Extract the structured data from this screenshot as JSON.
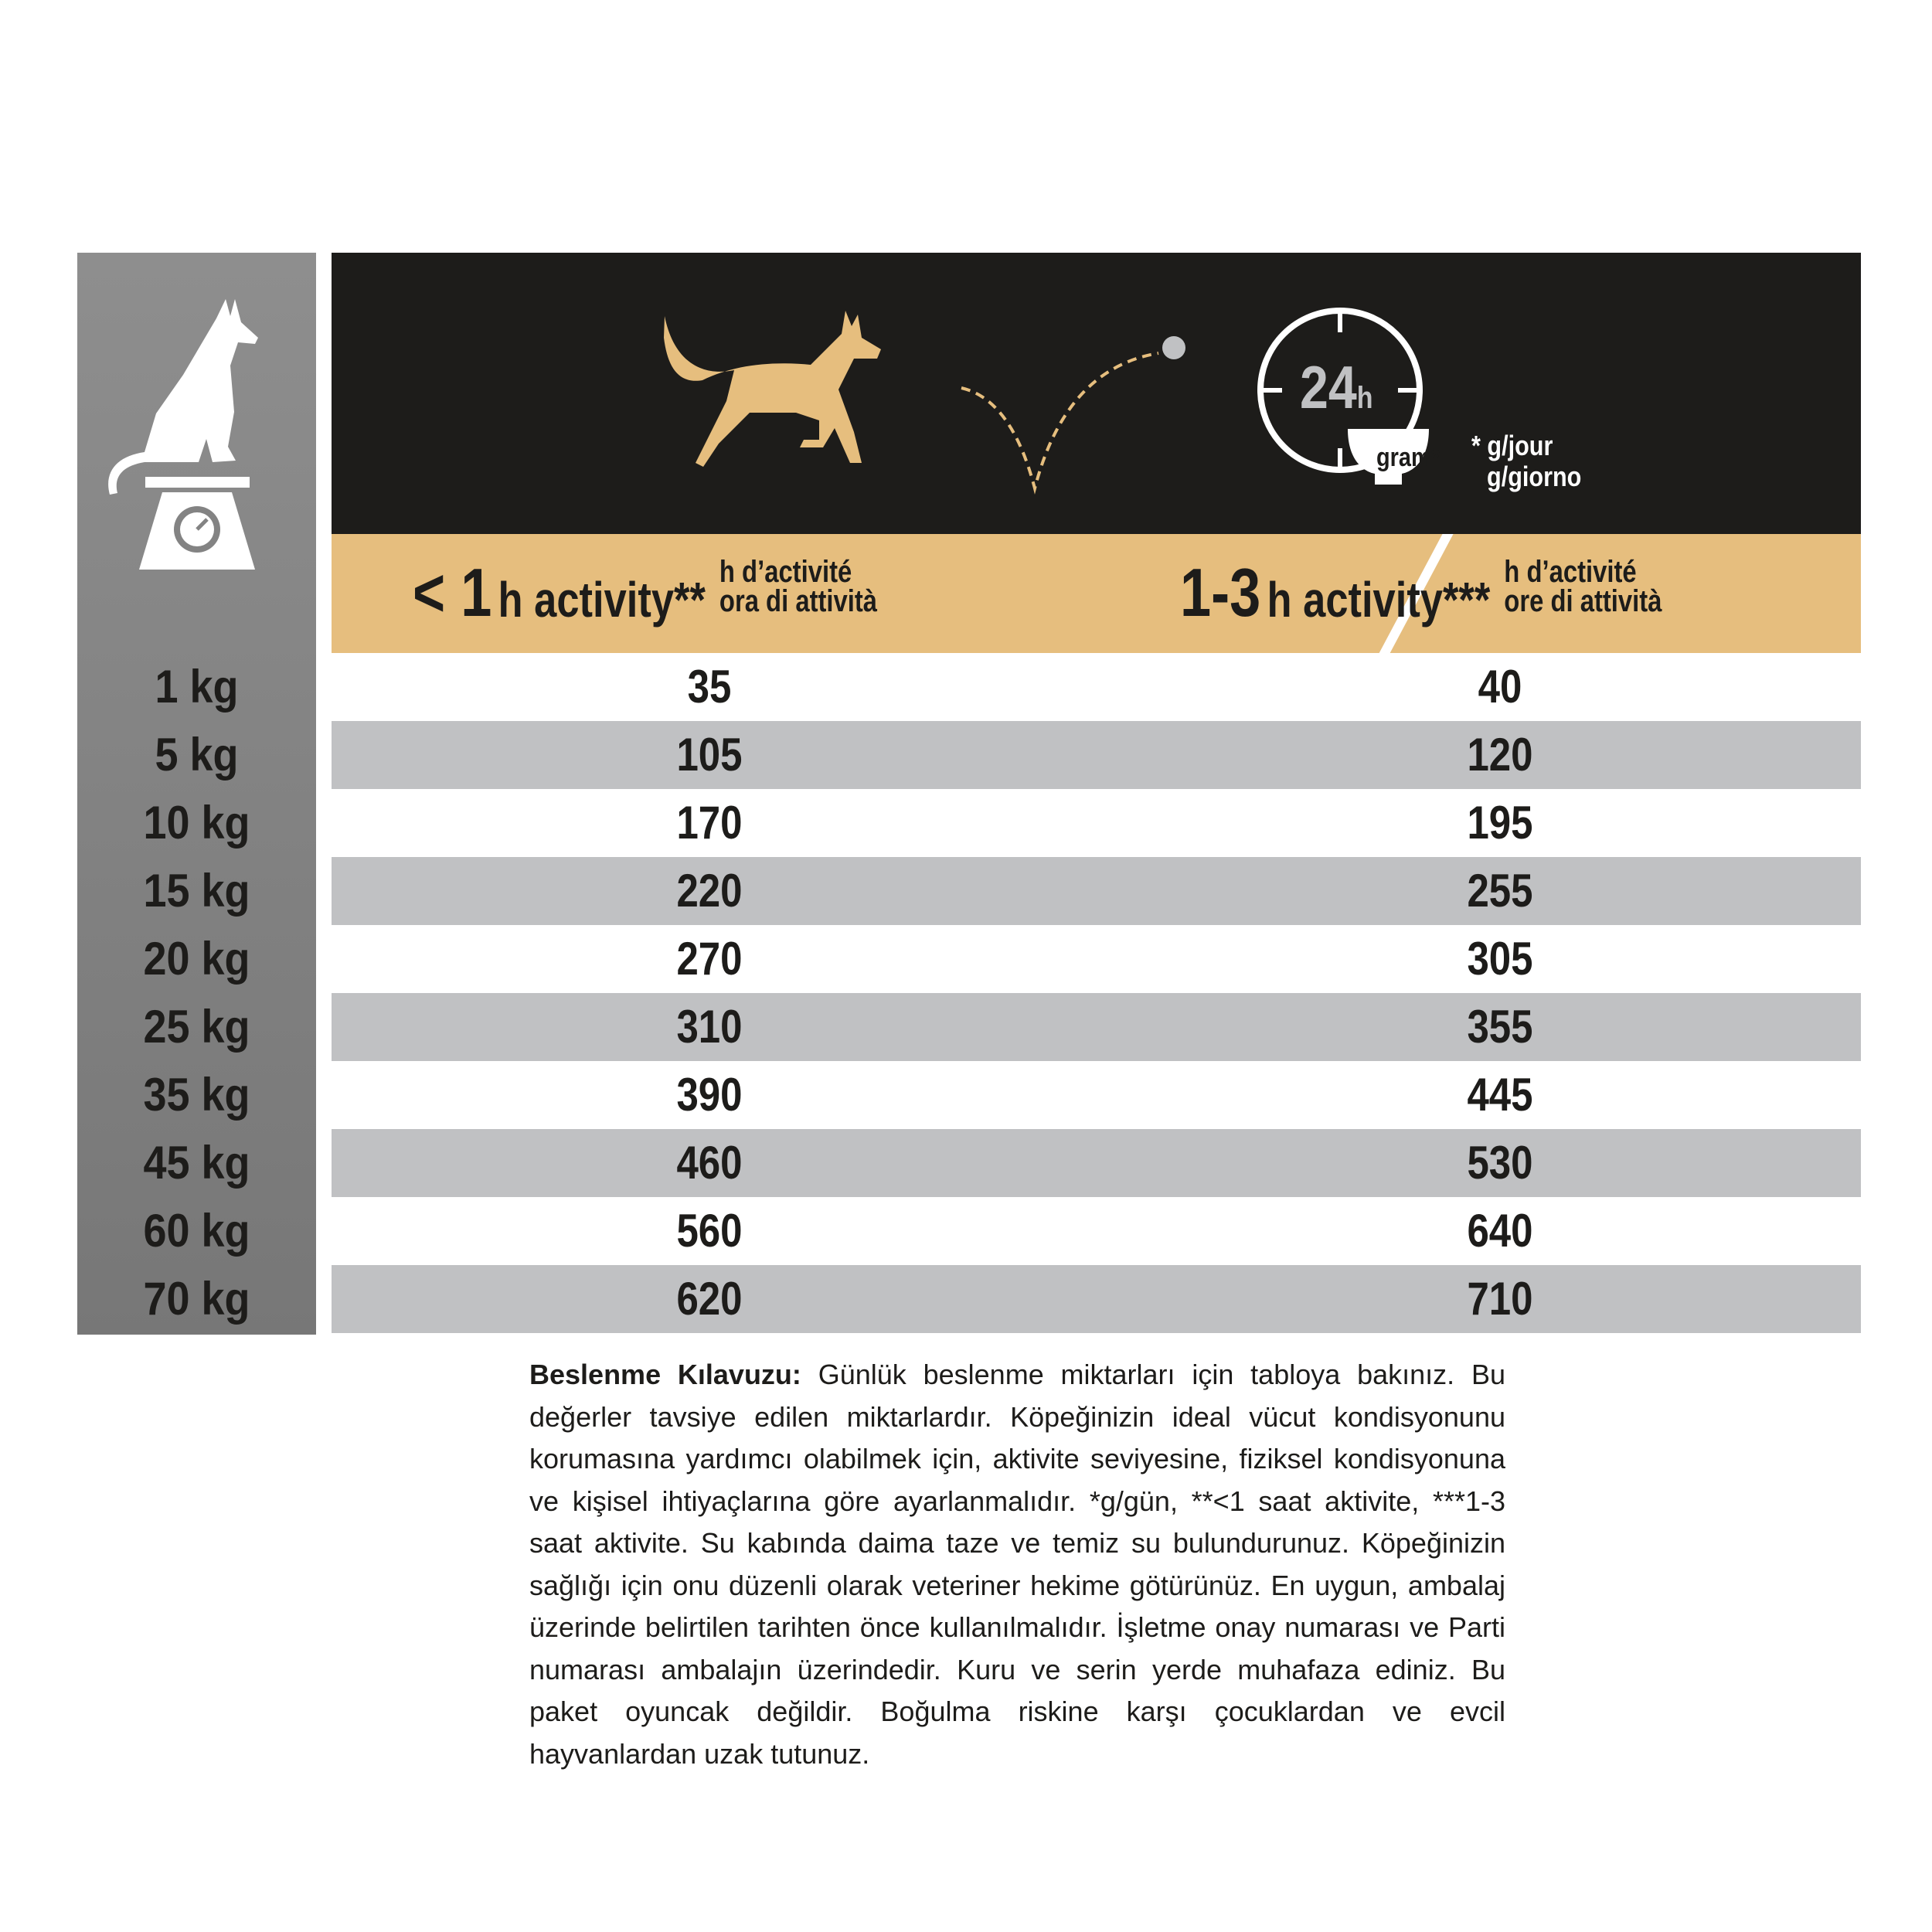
{
  "header": {
    "clock_label": "24",
    "clock_unit": "h",
    "bowl_label": "gram*",
    "unit_fr": "* g/jour",
    "unit_it": "g/giorno"
  },
  "columns": [
    {
      "prefix": "< 1",
      "label": "h activity**",
      "fr": "h d’activité",
      "it": "ora di attività"
    },
    {
      "prefix": "1-3",
      "label": "h activity***",
      "fr": "h d’activité",
      "it": "ore di attività"
    }
  ],
  "rows": [
    {
      "weight": "1 kg",
      "low": "35",
      "high": "40"
    },
    {
      "weight": "5 kg",
      "low": "105",
      "high": "120"
    },
    {
      "weight": "10 kg",
      "low": "170",
      "high": "195"
    },
    {
      "weight": "15 kg",
      "low": "220",
      "high": "255"
    },
    {
      "weight": "20 kg",
      "low": "270",
      "high": "305"
    },
    {
      "weight": "25 kg",
      "low": "310",
      "high": "355"
    },
    {
      "weight": "35 kg",
      "low": "390",
      "high": "445"
    },
    {
      "weight": "45 kg",
      "low": "460",
      "high": "530"
    },
    {
      "weight": "60 kg",
      "low": "560",
      "high": "640"
    },
    {
      "weight": "70 kg",
      "low": "620",
      "high": "710"
    }
  ],
  "note": {
    "title": "Beslenme Kılavuzu:",
    "body": " Günlük beslenme miktarları için tabloya bakınız. Bu değerler tavsiye edilen miktarlardır. Köpeğinizin ideal vücut kondisyonunu korumasına yardımcı olabilmek için, aktivite seviyesine, fiziksel kondisyonuna ve kişisel ihtiyaçlarına göre ayarlanmalıdır. *g/gün, **<1 saat aktivite, ***1-3 saat aktivite. Su kabında daima taze ve temiz su bulundurunuz. Köpeğinizin sağlığı için onu düzenli olarak veteriner hekime götürünüz. En uygun, ambalaj üzerinde belirtilen tarihten önce kullanılmalıdır. İşletme onay numarası ve Parti numarası ambalajın üzerindedir. Kuru ve serin yerde muhafaza ediniz. Bu paket oyuncak değildir. Boğulma riskine karşı çocuklardan ve evcil hayvanlardan uzak tutunuz."
  },
  "colors": {
    "dark": "#1d1c1a",
    "tan": "#e6be7e",
    "row_alt": "#c0c1c3",
    "side": "#838383"
  }
}
